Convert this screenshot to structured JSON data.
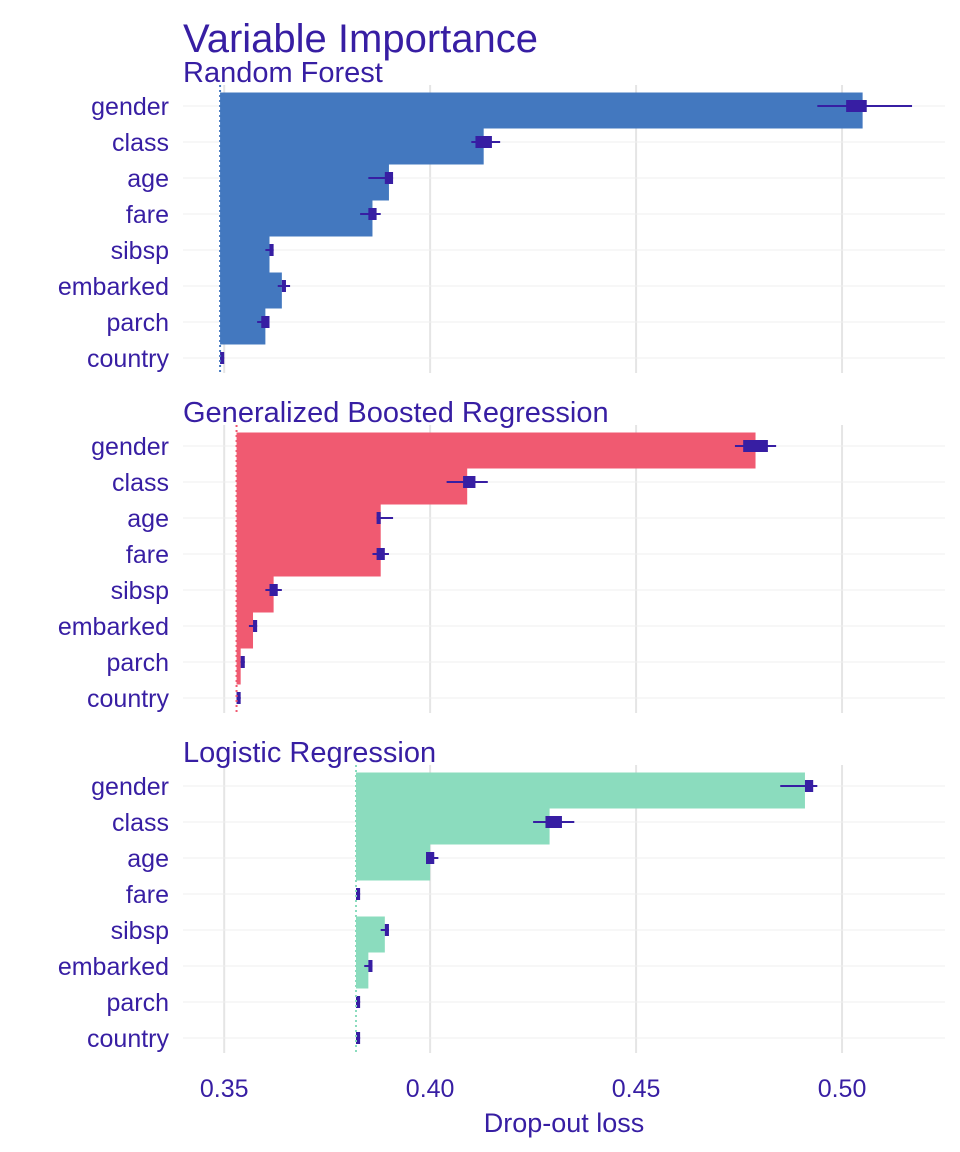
{
  "chart_data": {
    "type": "bar",
    "title": "Variable Importance",
    "xlabel": "Drop-out loss",
    "xlim": [
      0.34,
      0.525
    ],
    "xticks": [
      0.35,
      0.4,
      0.45,
      0.5
    ],
    "xtick_labels": [
      "0.35",
      "0.40",
      "0.45",
      "0.50"
    ],
    "grid": true,
    "whisker_color": "#371ea3",
    "panels": [
      {
        "name": "Random Forest",
        "color": "#4378bf",
        "baseline": 0.349,
        "bars": [
          {
            "variable": "gender",
            "value": 0.505,
            "low": 0.494,
            "q1": 0.501,
            "q3": 0.506,
            "high": 0.517
          },
          {
            "variable": "class",
            "value": 0.413,
            "low": 0.41,
            "q1": 0.411,
            "q3": 0.415,
            "high": 0.417
          },
          {
            "variable": "age",
            "value": 0.39,
            "low": 0.385,
            "q1": 0.389,
            "q3": 0.391,
            "high": 0.391
          },
          {
            "variable": "fare",
            "value": 0.386,
            "low": 0.383,
            "q1": 0.385,
            "q3": 0.387,
            "high": 0.388
          },
          {
            "variable": "sibsp",
            "value": 0.361,
            "low": 0.36,
            "q1": 0.361,
            "q3": 0.362,
            "high": 0.362
          },
          {
            "variable": "embarked",
            "value": 0.364,
            "low": 0.363,
            "q1": 0.364,
            "q3": 0.365,
            "high": 0.366
          },
          {
            "variable": "parch",
            "value": 0.36,
            "low": 0.358,
            "q1": 0.359,
            "q3": 0.361,
            "high": 0.361
          },
          {
            "variable": "country",
            "value": 0.349,
            "low": 0.349,
            "q1": 0.349,
            "q3": 0.35,
            "high": 0.35
          }
        ]
      },
      {
        "name": "Generalized Boosted Regression",
        "color": "#f05a71",
        "baseline": 0.353,
        "bars": [
          {
            "variable": "gender",
            "value": 0.479,
            "low": 0.474,
            "q1": 0.476,
            "q3": 0.482,
            "high": 0.484
          },
          {
            "variable": "class",
            "value": 0.409,
            "low": 0.404,
            "q1": 0.408,
            "q3": 0.411,
            "high": 0.414
          },
          {
            "variable": "age",
            "value": 0.388,
            "low": 0.387,
            "q1": 0.387,
            "q3": 0.388,
            "high": 0.391
          },
          {
            "variable": "fare",
            "value": 0.388,
            "low": 0.386,
            "q1": 0.387,
            "q3": 0.389,
            "high": 0.39
          },
          {
            "variable": "sibsp",
            "value": 0.362,
            "low": 0.36,
            "q1": 0.361,
            "q3": 0.363,
            "high": 0.364
          },
          {
            "variable": "embarked",
            "value": 0.357,
            "low": 0.356,
            "q1": 0.357,
            "q3": 0.358,
            "high": 0.358
          },
          {
            "variable": "parch",
            "value": 0.354,
            "low": 0.354,
            "q1": 0.354,
            "q3": 0.355,
            "high": 0.355
          },
          {
            "variable": "country",
            "value": 0.353,
            "low": 0.353,
            "q1": 0.353,
            "q3": 0.354,
            "high": 0.354
          }
        ]
      },
      {
        "name": "Logistic Regression",
        "color": "#8bdcbe",
        "baseline": 0.382,
        "bars": [
          {
            "variable": "gender",
            "value": 0.491,
            "low": 0.485,
            "q1": 0.491,
            "q3": 0.493,
            "high": 0.494
          },
          {
            "variable": "class",
            "value": 0.429,
            "low": 0.425,
            "q1": 0.428,
            "q3": 0.432,
            "high": 0.435
          },
          {
            "variable": "age",
            "value": 0.4,
            "low": 0.399,
            "q1": 0.399,
            "q3": 0.401,
            "high": 0.402
          },
          {
            "variable": "fare",
            "value": 0.382,
            "low": 0.382,
            "q1": 0.382,
            "q3": 0.383,
            "high": 0.383
          },
          {
            "variable": "sibsp",
            "value": 0.389,
            "low": 0.388,
            "q1": 0.389,
            "q3": 0.39,
            "high": 0.39
          },
          {
            "variable": "embarked",
            "value": 0.385,
            "low": 0.384,
            "q1": 0.385,
            "q3": 0.386,
            "high": 0.386
          },
          {
            "variable": "parch",
            "value": 0.382,
            "low": 0.382,
            "q1": 0.382,
            "q3": 0.383,
            "high": 0.383
          },
          {
            "variable": "country",
            "value": 0.382,
            "low": 0.382,
            "q1": 0.382,
            "q3": 0.383,
            "high": 0.383
          }
        ]
      }
    ]
  }
}
